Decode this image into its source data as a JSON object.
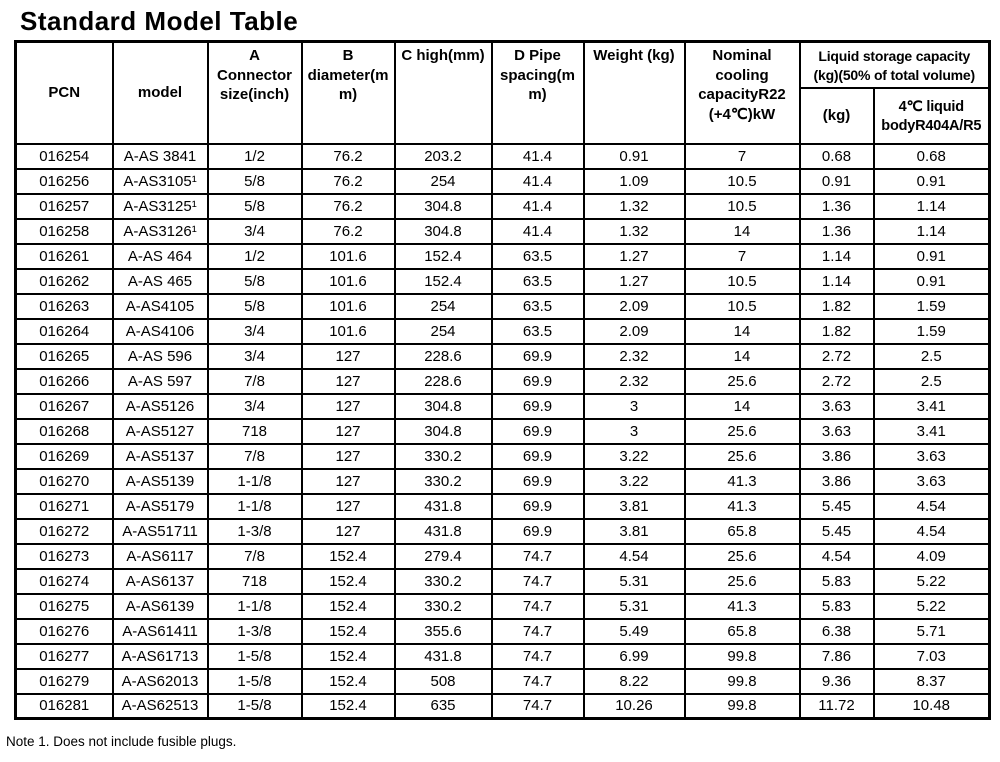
{
  "page": {
    "title": "Standard Model Table",
    "note": "Note 1. Does not include fusible plugs."
  },
  "table": {
    "headers": {
      "pcn": "PCN",
      "model": "model",
      "connector": "A\nConnector\nsize(inch)",
      "diameter": "B\ndiameter(m\nm)",
      "high": "C high(mm)",
      "pipe_spacing": "D Pipe\nspacing(m\nm)",
      "weight": "Weight (kg)",
      "cooling": "Nominal\ncooling\ncapacityR22\n(+4℃)kW",
      "liquid_group": "Liquid storage capacity\n(kg)(50% of total volume)",
      "liquid_kg": "(kg)",
      "liquid_4c": "4℃ liquid\nbodyR404A/R5"
    },
    "rows": [
      [
        "016254",
        "A-AS 3841",
        "1/2",
        "76.2",
        "203.2",
        "41.4",
        "0.91",
        "7",
        "0.68",
        "0.68"
      ],
      [
        "016256",
        "A-AS3105¹",
        "5/8",
        "76.2",
        "254",
        "41.4",
        "1.09",
        "10.5",
        "0.91",
        "0.91"
      ],
      [
        "016257",
        "A-AS3125¹",
        "5/8",
        "76.2",
        "304.8",
        "41.4",
        "1.32",
        "10.5",
        "1.36",
        "1.14"
      ],
      [
        "016258",
        "A-AS3126¹",
        "3/4",
        "76.2",
        "304.8",
        "41.4",
        "1.32",
        "14",
        "1.36",
        "1.14"
      ],
      [
        "016261",
        "A-AS 464",
        "1/2",
        "101.6",
        "152.4",
        "63.5",
        "1.27",
        "7",
        "1.14",
        "0.91"
      ],
      [
        "016262",
        "A-AS 465",
        "5/8",
        "101.6",
        "152.4",
        "63.5",
        "1.27",
        "10.5",
        "1.14",
        "0.91"
      ],
      [
        "016263",
        "A-AS4105",
        "5/8",
        "101.6",
        "254",
        "63.5",
        "2.09",
        "10.5",
        "1.82",
        "1.59"
      ],
      [
        "016264",
        "A-AS4106",
        "3/4",
        "101.6",
        "254",
        "63.5",
        "2.09",
        "14",
        "1.82",
        "1.59"
      ],
      [
        "016265",
        "A-AS 596",
        "3/4",
        "127",
        "228.6",
        "69.9",
        "2.32",
        "14",
        "2.72",
        "2.5"
      ],
      [
        "016266",
        "A-AS 597",
        "7/8",
        "127",
        "228.6",
        "69.9",
        "2.32",
        "25.6",
        "2.72",
        "2.5"
      ],
      [
        "016267",
        "A-AS5126",
        "3/4",
        "127",
        "304.8",
        "69.9",
        "3",
        "14",
        "3.63",
        "3.41"
      ],
      [
        "016268",
        "A-AS5127",
        "718",
        "127",
        "304.8",
        "69.9",
        "3",
        "25.6",
        "3.63",
        "3.41"
      ],
      [
        "016269",
        "A-AS5137",
        "7/8",
        "127",
        "330.2",
        "69.9",
        "3.22",
        "25.6",
        "3.86",
        "3.63"
      ],
      [
        "016270",
        "A-AS5139",
        "1-1/8",
        "127",
        "330.2",
        "69.9",
        "3.22",
        "41.3",
        "3.86",
        "3.63"
      ],
      [
        "016271",
        "A-AS5179",
        "1-1/8",
        "127",
        "431.8",
        "69.9",
        "3.81",
        "41.3",
        "5.45",
        "4.54"
      ],
      [
        "016272",
        "A-AS51711",
        "1-3/8",
        "127",
        "431.8",
        "69.9",
        "3.81",
        "65.8",
        "5.45",
        "4.54"
      ],
      [
        "016273",
        "A-AS6117",
        "7/8",
        "152.4",
        "279.4",
        "74.7",
        "4.54",
        "25.6",
        "4.54",
        "4.09"
      ],
      [
        "016274",
        "A-AS6137",
        "718",
        "152.4",
        "330.2",
        "74.7",
        "5.31",
        "25.6",
        "5.83",
        "5.22"
      ],
      [
        "016275",
        "A-AS6139",
        "1-1/8",
        "152.4",
        "330.2",
        "74.7",
        "5.31",
        "41.3",
        "5.83",
        "5.22"
      ],
      [
        "016276",
        "A-AS61411",
        "1-3/8",
        "152.4",
        "355.6",
        "74.7",
        "5.49",
        "65.8",
        "6.38",
        "5.71"
      ],
      [
        "016277",
        "A-AS61713",
        "1-5/8",
        "152.4",
        "431.8",
        "74.7",
        "6.99",
        "99.8",
        "7.86",
        "7.03"
      ],
      [
        "016279",
        "A-AS62013",
        "1-5/8",
        "152.4",
        "508",
        "74.7",
        "8.22",
        "99.8",
        "9.36",
        "8.37"
      ],
      [
        "016281",
        "A-AS62513",
        "1-5/8",
        "152.4",
        "635",
        "74.7",
        "10.26",
        "99.8",
        "11.72",
        "10.48"
      ]
    ]
  }
}
